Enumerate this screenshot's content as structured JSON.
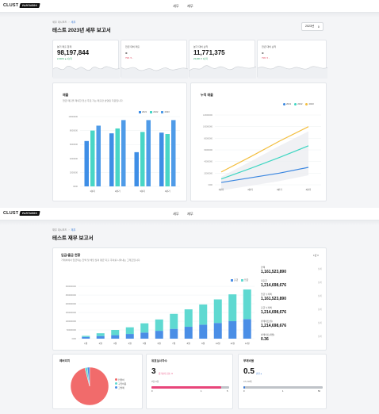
{
  "brand": {
    "name": "CLUST",
    "badge": "PARTNERS"
  },
  "nav": {
    "tax": "세무",
    "finance": "재무"
  },
  "screen1": {
    "breadcrumb": {
      "root": "세무 대시보드",
      "current": "세무"
    },
    "title": "테스트 2023년 세무 보고서",
    "year_select": "2023년",
    "stats": [
      {
        "label": "분기 매출 합계",
        "value": "98,197,844",
        "sub": "2,324% ▲ 1분기",
        "trend": "up"
      },
      {
        "label": "전년 대비 매출",
        "value": "-",
        "sub": "79% ▼ -",
        "trend": "down"
      },
      {
        "label": "분기 대비 순익",
        "value": "11,771,375",
        "sub": "23,406 ▼ 1분기",
        "trend": "up"
      },
      {
        "label": "전년 대비 순익",
        "value": "-",
        "sub": "79% ▼ -",
        "trend": "down"
      }
    ],
    "sales_card": {
      "title": "매출",
      "desc": "현금 매출을 제외한 전산 주로 기는 매출만 반영된 자료입니다."
    },
    "cumulative_card": {
      "title": "누적 매출"
    },
    "colors": {
      "y2021": "#3a86e0",
      "y2022": "#3ed6c2",
      "y2023": "#f3be3e",
      "bar2021": "#3e8ee6",
      "bar2022": "#48d6c6",
      "bar2023": "#4f9be8"
    }
  },
  "screen2": {
    "breadcrumb": {
      "root": "재무 대시보드",
      "current": "재무"
    },
    "title": "테스트 재무 보고서",
    "flow_card": {
      "title": "입금/출금 현황",
      "desc": "거래처에서 입금되는 잔액 및 해당 월의 평균 지출 추이를 나타내는 그래프입니다.",
      "period": "1년 ▾",
      "legend_out": "출금",
      "legend_in": "입금"
    },
    "side": [
      {
        "label": "잔액",
        "value": "1,161,523,890",
        "link": "상세"
      },
      {
        "label": "지출금",
        "value": "1,214,698,676",
        "link": "상세"
      },
      {
        "label": "입금 누적액",
        "value": "1,161,523,890",
        "link": "상세"
      },
      {
        "label": "출금 누적액",
        "value": "1,214,698,676",
        "link": "상세"
      },
      {
        "label": "번레이트(월)",
        "value": "1,214,698,676",
        "link": "상세"
      },
      {
        "label": "번레이트(개월)",
        "value": "0.36",
        "link": "상세"
      }
    ],
    "expense_card": {
      "title": "레버리지",
      "legend": [
        "인원비",
        "구입비용",
        "그밖에"
      ]
    },
    "employee_card": {
      "title": "유효실사자수",
      "value": "3",
      "tag": "증가보다 감소 ▼",
      "sub": "0명~5명",
      "ticks": [
        "0",
        "1",
        "5"
      ],
      "progress": 0.9
    },
    "debt_card": {
      "title": "부채비율",
      "value": "0.5",
      "tag": "안전 ●",
      "sub": "0.5~50배",
      "ticks": [
        "0",
        "1",
        "50"
      ],
      "progress": 0.02
    },
    "colors": {
      "out": "#4a8ee6",
      "in": "#5fd9d1",
      "pink": "#e8457a",
      "pie_main": "#f16b6b",
      "pie_b": "#5fd9d1",
      "pie_c": "#4a8ee6"
    }
  },
  "chart_data": [
    {
      "type": "bar",
      "title": "매출",
      "categories": [
        "1분기",
        "2분기",
        "3분기",
        "4분기"
      ],
      "ylim": [
        0,
        10000000
      ],
      "yticks": [
        "10000000",
        "8000000",
        "6000000",
        "4000000",
        "2000000",
        "0000"
      ],
      "series": [
        {
          "name": "2021",
          "values": [
            6500000,
            7600000,
            4900000,
            7700000
          ]
        },
        {
          "name": "2022",
          "values": [
            8000000,
            8300000,
            7800000,
            7500000
          ]
        },
        {
          "name": "2023",
          "values": [
            8700000,
            9500000,
            9500000,
            9500000
          ]
        }
      ]
    },
    {
      "type": "line",
      "title": "누적 매출",
      "categories": [
        "1분기",
        "2분기",
        "3분기",
        "4분기"
      ],
      "ylim": [
        0,
        120000000
      ],
      "yticks": [
        "120000000",
        "100000000",
        "80000000",
        "60000000",
        "40000000",
        "20000000",
        "0000"
      ],
      "series": [
        {
          "name": "2021",
          "values": [
            4000000,
            12000000,
            20000000,
            30000000
          ]
        },
        {
          "name": "2022",
          "values": [
            10000000,
            28000000,
            47000000,
            67000000
          ]
        },
        {
          "name": "2023",
          "values": [
            22000000,
            48000000,
            75000000,
            100000000
          ]
        }
      ]
    },
    {
      "type": "bar",
      "title": "입금/출금 현황",
      "categories": [
        "1월",
        "2월",
        "3월",
        "4월",
        "5월",
        "6월",
        "7월",
        "8월",
        "9월",
        "10월",
        "11월",
        "12월"
      ],
      "ylim": [
        0,
        3000000000
      ],
      "yticks": [
        "3000000000",
        "2500000000",
        "2000000000",
        "1500000000",
        "1000000000",
        "500000000",
        "0000"
      ],
      "series": [
        {
          "name": "출금",
          "values": [
            100000000,
            150000000,
            200000000,
            270000000,
            350000000,
            450000000,
            560000000,
            680000000,
            800000000,
            900000000,
            1000000000,
            1120000000
          ]
        },
        {
          "name": "입금",
          "values": [
            60000000,
            160000000,
            300000000,
            380000000,
            530000000,
            650000000,
            860000000,
            1000000000,
            1160000000,
            1350000000,
            1540000000,
            1700000000
          ]
        }
      ]
    },
    {
      "type": "pie",
      "title": "레버리지",
      "labels": [
        "인원비",
        "구입비용",
        "그밖에"
      ],
      "values": [
        96,
        2,
        2
      ]
    }
  ]
}
